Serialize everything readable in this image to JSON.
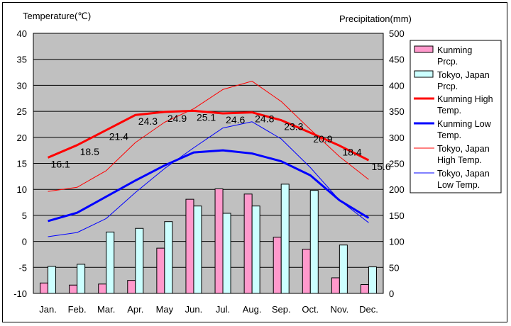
{
  "chart_data": {
    "type": "bar+line",
    "y_left_label": "Temperature(℃)",
    "y_right_label": "Precipitation(mm)",
    "ylim_left": [
      -10,
      40
    ],
    "ylim_right": [
      0,
      500
    ],
    "y_left_ticks": [
      40,
      35,
      30,
      25,
      20,
      15,
      10,
      5,
      0,
      -5,
      -10
    ],
    "y_right_ticks": [
      500,
      450,
      400,
      350,
      300,
      250,
      200,
      150,
      100,
      50,
      0
    ],
    "categories": [
      "Jan.",
      "Feb.",
      "Mar.",
      "Apr.",
      "May",
      "Jun.",
      "Jul.",
      "Aug.",
      "Sep.",
      "Oct.",
      "Nov.",
      "Dec."
    ],
    "grid": true,
    "legend_position": "right",
    "bar_series": [
      {
        "name": "Kunming Prcp.",
        "color": "#ff99cc",
        "axis": "right",
        "values": [
          20,
          16,
          18,
          25,
          87,
          181,
          201,
          191,
          108,
          85,
          30,
          17
        ]
      },
      {
        "name": "Tokyo, Japan Prcp.",
        "color": "#ccffff",
        "axis": "right",
        "values": [
          52,
          56,
          118,
          125,
          138,
          168,
          154,
          168,
          210,
          198,
          93,
          51
        ]
      }
    ],
    "line_series": [
      {
        "name": "Kunming High Temp.",
        "color": "#ff0000",
        "width": 3,
        "axis": "left",
        "values": [
          16.1,
          18.5,
          21.4,
          24.3,
          24.9,
          25.1,
          24.6,
          24.8,
          23.3,
          20.9,
          18.4,
          15.6
        ],
        "labels": [
          "16.1",
          "18.5",
          "21.4",
          "24.3",
          "24.9",
          "25.1",
          "24.6",
          "24.8",
          "23.3",
          "20.9",
          "18.4",
          "15.6"
        ]
      },
      {
        "name": "Kunming Low Temp.",
        "color": "#0000ff",
        "width": 3,
        "axis": "left",
        "values": [
          3.9,
          5.5,
          8.6,
          11.7,
          14.6,
          17.1,
          17.5,
          16.9,
          15.4,
          12.7,
          7.9,
          4.5
        ]
      },
      {
        "name": "Tokyo, Japan High Temp.",
        "color": "#ff0000",
        "width": 1,
        "axis": "left",
        "values": [
          9.6,
          10.4,
          13.6,
          19.0,
          22.9,
          25.5,
          29.2,
          30.8,
          26.9,
          21.5,
          16.3,
          11.9
        ]
      },
      {
        "name": "Tokyo, Japan Low Temp.",
        "color": "#0000ff",
        "width": 1,
        "axis": "left",
        "values": [
          0.9,
          1.7,
          4.4,
          9.4,
          14.0,
          18.0,
          21.8,
          23.0,
          19.7,
          14.2,
          7.9,
          3.6
        ]
      }
    ],
    "legend": [
      {
        "label": "Kunming Prcp.",
        "swatch": "bar",
        "color": "#ff99cc"
      },
      {
        "label": "Tokyo, Japan Prcp.",
        "swatch": "bar",
        "color": "#ccffff"
      },
      {
        "label": "Kunming High Temp.",
        "swatch": "line",
        "color": "#ff0000",
        "width": 3
      },
      {
        "label": "Kunming Low Temp.",
        "swatch": "line",
        "color": "#0000ff",
        "width": 3
      },
      {
        "label": "Tokyo, Japan High Temp.",
        "swatch": "line",
        "color": "#ff0000",
        "width": 1
      },
      {
        "label": "Tokyo, Japan Low Temp.",
        "swatch": "line",
        "color": "#0000ff",
        "width": 1
      }
    ],
    "plot_background": "#c0c0c0"
  }
}
